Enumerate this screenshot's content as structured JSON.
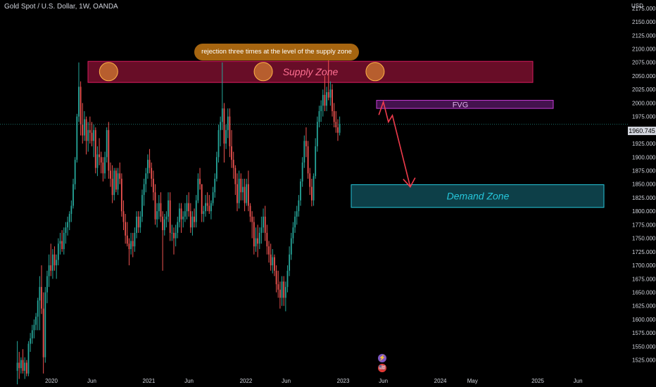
{
  "header": {
    "symbol_title": "Gold Spot / U.S. Dollar, 1W, OANDA",
    "currency": "USD"
  },
  "current_price_label": "1960.745",
  "annotations": {
    "callout": "rejection three times at the level of the supply zone",
    "supply_zone": "Supply Zone",
    "fvg": "FVG",
    "demand_zone": "Demand Zone"
  },
  "markers": {
    "lightning_icon": "⚡",
    "flag_icon": "🇺🇸"
  },
  "colors": {
    "up": "#26a69a",
    "down": "#ef5350",
    "supply_fill": "#7a0f2e",
    "supply_border": "#d81b60",
    "fvg_fill": "#4a1455",
    "fvg_border": "#c63cd8",
    "demand_fill": "#0f4a55",
    "demand_border": "#26c6da",
    "arrow": "#ef3b4c",
    "callout": "#a66510"
  },
  "chart_data": {
    "type": "candlestick",
    "title": "Gold Spot / U.S. Dollar, 1W, OANDA",
    "x_tick_labels": [
      "2020",
      "Jun",
      "2021",
      "Jun",
      "2022",
      "Jun",
      "2023",
      "Jun",
      "2024",
      "May",
      "2025",
      "Jun"
    ],
    "y_tick_labels": [
      "2175.000",
      "2150.000",
      "2125.000",
      "2100.000",
      "2075.000",
      "2050.000",
      "2025.000",
      "2000.000",
      "1975.000",
      "1950.000",
      "1925.000",
      "1900.000",
      "1875.000",
      "1850.000",
      "1825.000",
      "1800.000",
      "1775.000",
      "1750.000",
      "1725.000",
      "1700.000",
      "1675.000",
      "1650.000",
      "1625.000",
      "1600.000",
      "1575.000",
      "1550.000",
      "1525.000"
    ],
    "ylim": [
      1505,
      2180
    ],
    "current_price": 1960.745,
    "zones": {
      "supply": {
        "low": 2038,
        "high": 2077
      },
      "fvg": {
        "low": 1990,
        "high": 2005
      },
      "demand": {
        "low": 1807,
        "high": 1849
      }
    },
    "path_waypoints": [
      {
        "t": "2023-05-15",
        "price": 1978
      },
      {
        "t": "2023-06-01",
        "price": 2002
      },
      {
        "t": "2023-06-20",
        "price": 1965
      },
      {
        "t": "2023-07-05",
        "price": 1977
      },
      {
        "t": "2023-09-10",
        "price": 1845
      }
    ],
    "rejection_points": [
      {
        "t": "2020-08-03",
        "price": 2058
      },
      {
        "t": "2022-03-07",
        "price": 2058
      },
      {
        "t": "2023-05-01",
        "price": 2058
      }
    ],
    "candles": [
      {
        "o": 1505,
        "h": 1560,
        "l": 1480,
        "c": 1520
      },
      {
        "o": 1520,
        "h": 1540,
        "l": 1490,
        "c": 1510
      },
      {
        "o": 1510,
        "h": 1530,
        "l": 1500,
        "c": 1525
      },
      {
        "o": 1525,
        "h": 1545,
        "l": 1500,
        "c": 1505
      },
      {
        "o": 1505,
        "h": 1530,
        "l": 1490,
        "c": 1520
      },
      {
        "o": 1520,
        "h": 1525,
        "l": 1495,
        "c": 1500
      },
      {
        "o": 1500,
        "h": 1560,
        "l": 1495,
        "c": 1555
      },
      {
        "o": 1555,
        "h": 1575,
        "l": 1540,
        "c": 1565
      },
      {
        "o": 1565,
        "h": 1590,
        "l": 1555,
        "c": 1580
      },
      {
        "o": 1580,
        "h": 1600,
        "l": 1565,
        "c": 1590
      },
      {
        "o": 1590,
        "h": 1612,
        "l": 1580,
        "c": 1605
      },
      {
        "o": 1605,
        "h": 1640,
        "l": 1580,
        "c": 1635
      },
      {
        "o": 1635,
        "h": 1680,
        "l": 1580,
        "c": 1660
      },
      {
        "o": 1660,
        "h": 1700,
        "l": 1610,
        "c": 1620
      },
      {
        "o": 1620,
        "h": 1650,
        "l": 1500,
        "c": 1530
      },
      {
        "o": 1530,
        "h": 1660,
        "l": 1520,
        "c": 1650
      },
      {
        "o": 1650,
        "h": 1690,
        "l": 1630,
        "c": 1680
      },
      {
        "o": 1680,
        "h": 1720,
        "l": 1660,
        "c": 1700
      },
      {
        "o": 1700,
        "h": 1740,
        "l": 1680,
        "c": 1690
      },
      {
        "o": 1690,
        "h": 1730,
        "l": 1675,
        "c": 1720
      },
      {
        "o": 1720,
        "h": 1735,
        "l": 1690,
        "c": 1700
      },
      {
        "o": 1700,
        "h": 1720,
        "l": 1675,
        "c": 1710
      },
      {
        "o": 1710,
        "h": 1750,
        "l": 1700,
        "c": 1740
      },
      {
        "o": 1740,
        "h": 1760,
        "l": 1720,
        "c": 1745
      },
      {
        "o": 1745,
        "h": 1765,
        "l": 1725,
        "c": 1730
      },
      {
        "o": 1730,
        "h": 1770,
        "l": 1720,
        "c": 1760
      },
      {
        "o": 1760,
        "h": 1780,
        "l": 1740,
        "c": 1770
      },
      {
        "o": 1770,
        "h": 1790,
        "l": 1755,
        "c": 1780
      },
      {
        "o": 1780,
        "h": 1800,
        "l": 1765,
        "c": 1795
      },
      {
        "o": 1795,
        "h": 1820,
        "l": 1780,
        "c": 1810
      },
      {
        "o": 1810,
        "h": 1860,
        "l": 1805,
        "c": 1850
      },
      {
        "o": 1850,
        "h": 1900,
        "l": 1840,
        "c": 1895
      },
      {
        "o": 1895,
        "h": 1980,
        "l": 1890,
        "c": 1975
      },
      {
        "o": 1975,
        "h": 2075,
        "l": 1965,
        "c": 2030
      },
      {
        "o": 2030,
        "h": 2040,
        "l": 1940,
        "c": 1960
      },
      {
        "o": 1960,
        "h": 2000,
        "l": 1925,
        "c": 1940
      },
      {
        "o": 1940,
        "h": 1985,
        "l": 1930,
        "c": 1970
      },
      {
        "o": 1970,
        "h": 1975,
        "l": 1905,
        "c": 1930
      },
      {
        "o": 1930,
        "h": 1965,
        "l": 1910,
        "c": 1950
      },
      {
        "o": 1950,
        "h": 1975,
        "l": 1925,
        "c": 1945
      },
      {
        "o": 1945,
        "h": 1965,
        "l": 1920,
        "c": 1930
      },
      {
        "o": 1930,
        "h": 1960,
        "l": 1900,
        "c": 1950
      },
      {
        "o": 1950,
        "h": 1955,
        "l": 1870,
        "c": 1880
      },
      {
        "o": 1880,
        "h": 1920,
        "l": 1865,
        "c": 1905
      },
      {
        "o": 1905,
        "h": 1935,
        "l": 1885,
        "c": 1900
      },
      {
        "o": 1900,
        "h": 1910,
        "l": 1870,
        "c": 1890
      },
      {
        "o": 1890,
        "h": 1900,
        "l": 1855,
        "c": 1870
      },
      {
        "o": 1870,
        "h": 1910,
        "l": 1860,
        "c": 1900
      },
      {
        "o": 1900,
        "h": 1955,
        "l": 1890,
        "c": 1950
      },
      {
        "o": 1950,
        "h": 1965,
        "l": 1860,
        "c": 1875
      },
      {
        "o": 1875,
        "h": 1890,
        "l": 1845,
        "c": 1860
      },
      {
        "o": 1860,
        "h": 1885,
        "l": 1815,
        "c": 1830
      },
      {
        "o": 1830,
        "h": 1880,
        "l": 1820,
        "c": 1875
      },
      {
        "o": 1875,
        "h": 1880,
        "l": 1835,
        "c": 1840
      },
      {
        "o": 1840,
        "h": 1880,
        "l": 1830,
        "c": 1870
      },
      {
        "o": 1870,
        "h": 1890,
        "l": 1850,
        "c": 1860
      },
      {
        "o": 1860,
        "h": 1870,
        "l": 1790,
        "c": 1800
      },
      {
        "o": 1800,
        "h": 1820,
        "l": 1765,
        "c": 1780
      },
      {
        "o": 1780,
        "h": 1795,
        "l": 1740,
        "c": 1755
      },
      {
        "o": 1755,
        "h": 1780,
        "l": 1735,
        "c": 1740
      },
      {
        "o": 1740,
        "h": 1750,
        "l": 1700,
        "c": 1730
      },
      {
        "o": 1730,
        "h": 1760,
        "l": 1720,
        "c": 1745
      },
      {
        "o": 1745,
        "h": 1760,
        "l": 1715,
        "c": 1735
      },
      {
        "o": 1735,
        "h": 1770,
        "l": 1725,
        "c": 1760
      },
      {
        "o": 1760,
        "h": 1800,
        "l": 1750,
        "c": 1790
      },
      {
        "o": 1790,
        "h": 1800,
        "l": 1760,
        "c": 1770
      },
      {
        "o": 1770,
        "h": 1800,
        "l": 1760,
        "c": 1790
      },
      {
        "o": 1790,
        "h": 1840,
        "l": 1780,
        "c": 1830
      },
      {
        "o": 1830,
        "h": 1860,
        "l": 1810,
        "c": 1850
      },
      {
        "o": 1850,
        "h": 1880,
        "l": 1835,
        "c": 1870
      },
      {
        "o": 1870,
        "h": 1905,
        "l": 1860,
        "c": 1895
      },
      {
        "o": 1895,
        "h": 1915,
        "l": 1870,
        "c": 1880
      },
      {
        "o": 1880,
        "h": 1890,
        "l": 1845,
        "c": 1860
      },
      {
        "o": 1860,
        "h": 1875,
        "l": 1820,
        "c": 1835
      },
      {
        "o": 1835,
        "h": 1850,
        "l": 1775,
        "c": 1785
      },
      {
        "o": 1785,
        "h": 1815,
        "l": 1770,
        "c": 1800
      },
      {
        "o": 1800,
        "h": 1830,
        "l": 1785,
        "c": 1815
      },
      {
        "o": 1815,
        "h": 1835,
        "l": 1780,
        "c": 1790
      },
      {
        "o": 1790,
        "h": 1800,
        "l": 1690,
        "c": 1765
      },
      {
        "o": 1765,
        "h": 1795,
        "l": 1755,
        "c": 1785
      },
      {
        "o": 1785,
        "h": 1800,
        "l": 1770,
        "c": 1790
      },
      {
        "o": 1790,
        "h": 1835,
        "l": 1780,
        "c": 1820
      },
      {
        "o": 1820,
        "h": 1835,
        "l": 1745,
        "c": 1760
      },
      {
        "o": 1760,
        "h": 1775,
        "l": 1745,
        "c": 1760
      },
      {
        "o": 1760,
        "h": 1770,
        "l": 1720,
        "c": 1750
      },
      {
        "o": 1750,
        "h": 1775,
        "l": 1735,
        "c": 1760
      },
      {
        "o": 1760,
        "h": 1790,
        "l": 1750,
        "c": 1780
      },
      {
        "o": 1780,
        "h": 1815,
        "l": 1770,
        "c": 1805
      },
      {
        "o": 1805,
        "h": 1815,
        "l": 1760,
        "c": 1785
      },
      {
        "o": 1785,
        "h": 1800,
        "l": 1770,
        "c": 1790
      },
      {
        "o": 1790,
        "h": 1815,
        "l": 1780,
        "c": 1800
      },
      {
        "o": 1800,
        "h": 1830,
        "l": 1785,
        "c": 1815
      },
      {
        "o": 1815,
        "h": 1835,
        "l": 1790,
        "c": 1800
      },
      {
        "o": 1800,
        "h": 1815,
        "l": 1760,
        "c": 1770
      },
      {
        "o": 1770,
        "h": 1800,
        "l": 1755,
        "c": 1790
      },
      {
        "o": 1790,
        "h": 1805,
        "l": 1770,
        "c": 1780
      },
      {
        "o": 1780,
        "h": 1830,
        "l": 1770,
        "c": 1820
      },
      {
        "o": 1820,
        "h": 1870,
        "l": 1815,
        "c": 1860
      },
      {
        "o": 1860,
        "h": 1880,
        "l": 1840,
        "c": 1850
      },
      {
        "o": 1850,
        "h": 1850,
        "l": 1780,
        "c": 1795
      },
      {
        "o": 1795,
        "h": 1810,
        "l": 1780,
        "c": 1800
      },
      {
        "o": 1800,
        "h": 1830,
        "l": 1790,
        "c": 1815
      },
      {
        "o": 1815,
        "h": 1835,
        "l": 1800,
        "c": 1810
      },
      {
        "o": 1810,
        "h": 1830,
        "l": 1795,
        "c": 1800
      },
      {
        "o": 1800,
        "h": 1820,
        "l": 1785,
        "c": 1815
      },
      {
        "o": 1815,
        "h": 1845,
        "l": 1810,
        "c": 1835
      },
      {
        "o": 1835,
        "h": 1870,
        "l": 1825,
        "c": 1860
      },
      {
        "o": 1860,
        "h": 1910,
        "l": 1855,
        "c": 1900
      },
      {
        "o": 1900,
        "h": 1960,
        "l": 1890,
        "c": 1950
      },
      {
        "o": 1950,
        "h": 1975,
        "l": 1920,
        "c": 1965
      },
      {
        "o": 1965,
        "h": 2075,
        "l": 1950,
        "c": 1990
      },
      {
        "o": 1990,
        "h": 2000,
        "l": 1890,
        "c": 1925
      },
      {
        "o": 1925,
        "h": 1960,
        "l": 1915,
        "c": 1950
      },
      {
        "o": 1950,
        "h": 1990,
        "l": 1935,
        "c": 1975
      },
      {
        "o": 1975,
        "h": 1990,
        "l": 1900,
        "c": 1920
      },
      {
        "o": 1920,
        "h": 1950,
        "l": 1880,
        "c": 1895
      },
      {
        "o": 1895,
        "h": 1910,
        "l": 1860,
        "c": 1880
      },
      {
        "o": 1880,
        "h": 1885,
        "l": 1830,
        "c": 1850
      },
      {
        "o": 1850,
        "h": 1870,
        "l": 1800,
        "c": 1815
      },
      {
        "o": 1815,
        "h": 1875,
        "l": 1805,
        "c": 1860
      },
      {
        "o": 1860,
        "h": 1870,
        "l": 1820,
        "c": 1835
      },
      {
        "o": 1835,
        "h": 1860,
        "l": 1820,
        "c": 1845
      },
      {
        "o": 1845,
        "h": 1860,
        "l": 1800,
        "c": 1815
      },
      {
        "o": 1815,
        "h": 1860,
        "l": 1810,
        "c": 1850
      },
      {
        "o": 1850,
        "h": 1875,
        "l": 1800,
        "c": 1810
      },
      {
        "o": 1810,
        "h": 1815,
        "l": 1780,
        "c": 1790
      },
      {
        "o": 1790,
        "h": 1800,
        "l": 1750,
        "c": 1780
      },
      {
        "o": 1780,
        "h": 1790,
        "l": 1720,
        "c": 1735
      },
      {
        "o": 1735,
        "h": 1770,
        "l": 1725,
        "c": 1750
      },
      {
        "o": 1750,
        "h": 1775,
        "l": 1715,
        "c": 1740
      },
      {
        "o": 1740,
        "h": 1770,
        "l": 1730,
        "c": 1760
      },
      {
        "o": 1760,
        "h": 1790,
        "l": 1740,
        "c": 1770
      },
      {
        "o": 1770,
        "h": 1805,
        "l": 1760,
        "c": 1790
      },
      {
        "o": 1790,
        "h": 1810,
        "l": 1745,
        "c": 1760
      },
      {
        "o": 1760,
        "h": 1775,
        "l": 1720,
        "c": 1735
      },
      {
        "o": 1735,
        "h": 1745,
        "l": 1705,
        "c": 1720
      },
      {
        "o": 1720,
        "h": 1740,
        "l": 1690,
        "c": 1700
      },
      {
        "o": 1700,
        "h": 1730,
        "l": 1685,
        "c": 1715
      },
      {
        "o": 1715,
        "h": 1720,
        "l": 1680,
        "c": 1690
      },
      {
        "o": 1690,
        "h": 1700,
        "l": 1650,
        "c": 1665
      },
      {
        "o": 1665,
        "h": 1690,
        "l": 1640,
        "c": 1655
      },
      {
        "o": 1655,
        "h": 1670,
        "l": 1620,
        "c": 1640
      },
      {
        "o": 1640,
        "h": 1680,
        "l": 1625,
        "c": 1670
      },
      {
        "o": 1670,
        "h": 1680,
        "l": 1625,
        "c": 1640
      },
      {
        "o": 1640,
        "h": 1670,
        "l": 1615,
        "c": 1660
      },
      {
        "o": 1660,
        "h": 1700,
        "l": 1650,
        "c": 1690
      },
      {
        "o": 1690,
        "h": 1735,
        "l": 1680,
        "c": 1720
      },
      {
        "o": 1720,
        "h": 1760,
        "l": 1710,
        "c": 1750
      },
      {
        "o": 1750,
        "h": 1780,
        "l": 1740,
        "c": 1770
      },
      {
        "o": 1770,
        "h": 1800,
        "l": 1760,
        "c": 1790
      },
      {
        "o": 1790,
        "h": 1810,
        "l": 1775,
        "c": 1800
      },
      {
        "o": 1800,
        "h": 1830,
        "l": 1790,
        "c": 1820
      },
      {
        "o": 1820,
        "h": 1860,
        "l": 1810,
        "c": 1855
      },
      {
        "o": 1855,
        "h": 1900,
        "l": 1845,
        "c": 1890
      },
      {
        "o": 1890,
        "h": 1940,
        "l": 1880,
        "c": 1930
      },
      {
        "o": 1930,
        "h": 1955,
        "l": 1900,
        "c": 1920
      },
      {
        "o": 1920,
        "h": 1930,
        "l": 1860,
        "c": 1870
      },
      {
        "o": 1870,
        "h": 1880,
        "l": 1830,
        "c": 1845
      },
      {
        "o": 1845,
        "h": 1860,
        "l": 1809,
        "c": 1820
      },
      {
        "o": 1820,
        "h": 1870,
        "l": 1810,
        "c": 1865
      },
      {
        "o": 1865,
        "h": 1935,
        "l": 1860,
        "c": 1920
      },
      {
        "o": 1920,
        "h": 1975,
        "l": 1910,
        "c": 1965
      },
      {
        "o": 1965,
        "h": 1995,
        "l": 1955,
        "c": 1985
      },
      {
        "o": 1985,
        "h": 2005,
        "l": 1965,
        "c": 1995
      },
      {
        "o": 1995,
        "h": 2025,
        "l": 1975,
        "c": 2015
      },
      {
        "o": 2015,
        "h": 2050,
        "l": 1985,
        "c": 1995
      },
      {
        "o": 1995,
        "h": 2030,
        "l": 1985,
        "c": 2020
      },
      {
        "o": 2020,
        "h": 2080,
        "l": 2005,
        "c": 2010
      },
      {
        "o": 2010,
        "h": 2040,
        "l": 1995,
        "c": 2025
      },
      {
        "o": 2025,
        "h": 2035,
        "l": 1975,
        "c": 1985
      },
      {
        "o": 1985,
        "h": 2000,
        "l": 1955,
        "c": 1965
      },
      {
        "o": 1965,
        "h": 1985,
        "l": 1945,
        "c": 1955
      },
      {
        "o": 1955,
        "h": 1970,
        "l": 1930,
        "c": 1945
      },
      {
        "o": 1945,
        "h": 1975,
        "l": 1940,
        "c": 1961
      }
    ]
  }
}
